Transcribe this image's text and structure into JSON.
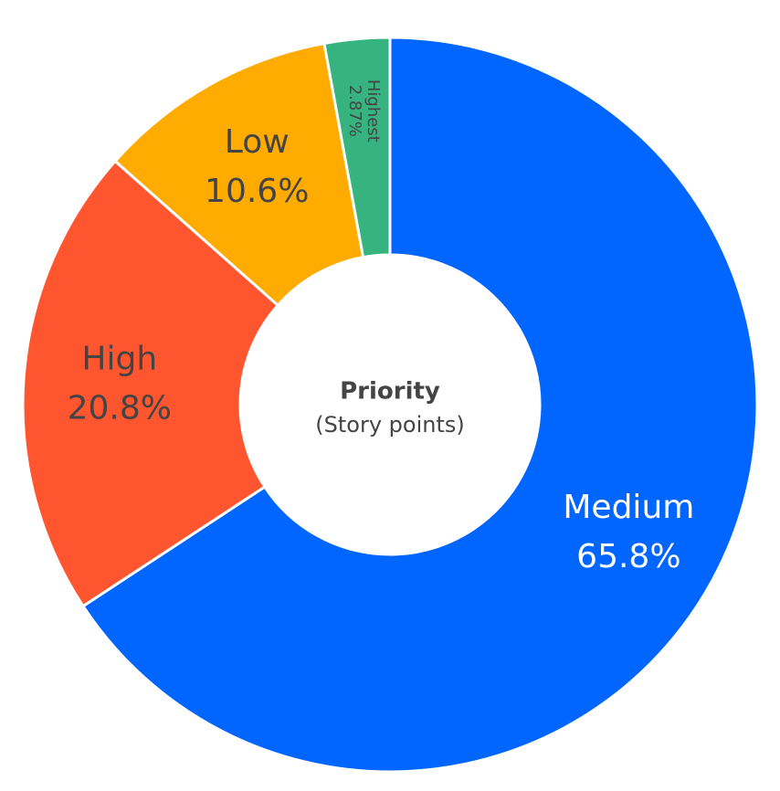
{
  "chart_data": {
    "type": "pie",
    "donut": true,
    "center_title": "Priority",
    "center_subtitle": "(Story points)",
    "slices": [
      {
        "label": "Medium",
        "percent_text": "65.8%",
        "value": 65.8,
        "color": "#0066FF",
        "text_color": "#ffffff"
      },
      {
        "label": "High",
        "percent_text": "20.8%",
        "value": 20.8,
        "color": "#FF5630",
        "text_color": "#444444"
      },
      {
        "label": "Low",
        "percent_text": "10.6%",
        "value": 10.6,
        "color": "#FFAB00",
        "text_color": "#444444"
      },
      {
        "label": "Highest",
        "percent_text": "2.87%",
        "value": 2.87,
        "color": "#36B37E",
        "text_color": "#444444"
      }
    ],
    "direction": "clockwise",
    "start": "top"
  }
}
